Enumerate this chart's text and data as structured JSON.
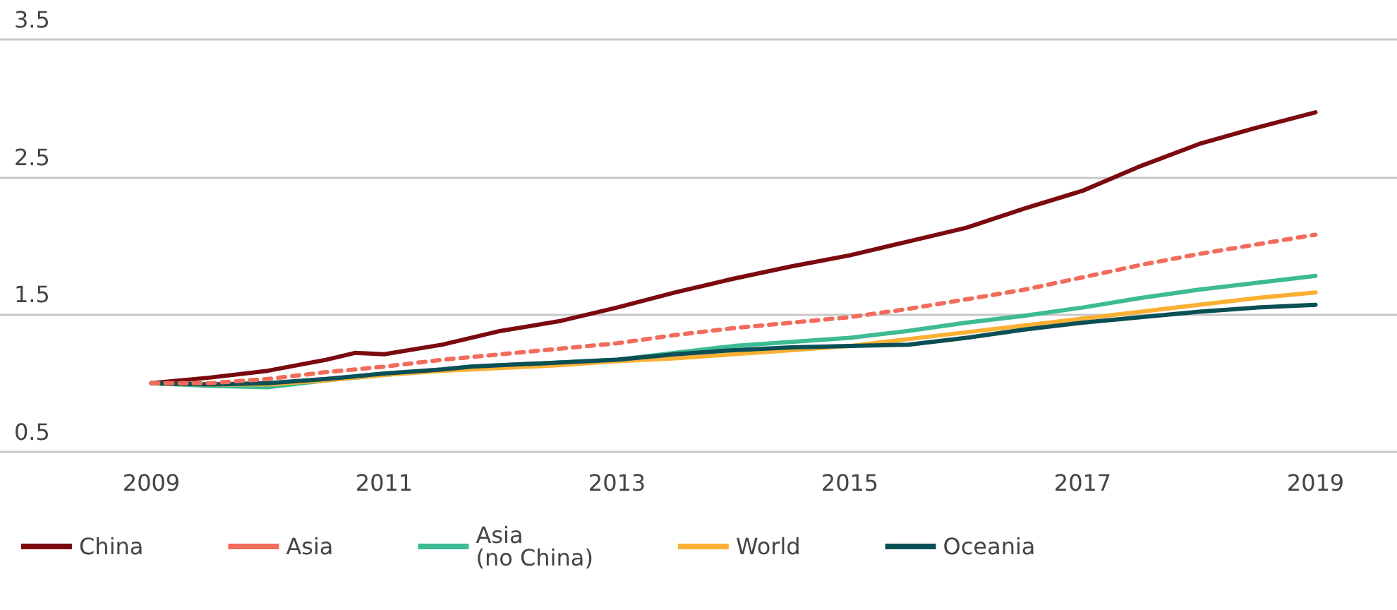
{
  "chart_data": {
    "type": "line",
    "xlim": [
      2007.7,
      2019.7
    ],
    "xticks": [
      2009,
      2011,
      2013,
      2015,
      2017,
      2019
    ],
    "ylim": [
      0.5,
      3.5
    ],
    "yticks": [
      0.5,
      1.5,
      2.5,
      3.5
    ],
    "grid": "y",
    "legend": "bottom left",
    "marker": "none",
    "x": [
      2009,
      2009.5,
      2010,
      2010.5,
      2010.75,
      2011,
      2011.5,
      2011.75,
      2012,
      2012.5,
      2013,
      2013.5,
      2014,
      2014.5,
      2015,
      2015.5,
      2016,
      2016.5,
      2017,
      2017.5,
      2018,
      2018.5,
      2019
    ],
    "series": [
      {
        "name": "China",
        "color": "#7b0a0f",
        "line_style": "solid",
        "values": [
          1.0,
          1.04,
          1.09,
          1.17,
          1.22,
          1.21,
          1.28,
          1.33,
          1.38,
          1.45,
          1.55,
          1.66,
          1.76,
          1.85,
          1.93,
          2.03,
          2.13,
          2.27,
          2.4,
          2.58,
          2.74,
          2.86,
          2.97
        ]
      },
      {
        "name": "Asia",
        "color": "#f26b5b",
        "line_style": "dashed",
        "values": [
          1.0,
          1.0,
          1.03,
          1.08,
          1.1,
          1.12,
          1.17,
          1.19,
          1.21,
          1.25,
          1.29,
          1.35,
          1.4,
          1.44,
          1.48,
          1.54,
          1.61,
          1.68,
          1.77,
          1.86,
          1.94,
          2.01,
          2.08
        ]
      },
      {
        "name": "Asia\n(no China)",
        "color": "#3dbb94",
        "line_style": "solid",
        "values": [
          1.0,
          0.98,
          0.97,
          1.02,
          1.04,
          1.06,
          1.1,
          1.12,
          1.13,
          1.15,
          1.17,
          1.22,
          1.27,
          1.3,
          1.33,
          1.38,
          1.44,
          1.49,
          1.55,
          1.62,
          1.68,
          1.73,
          1.78
        ]
      },
      {
        "name": "World",
        "color": "#fbb034",
        "line_style": "solid",
        "values": [
          1.0,
          0.99,
          0.99,
          1.02,
          1.04,
          1.06,
          1.09,
          1.1,
          1.11,
          1.13,
          1.16,
          1.18,
          1.21,
          1.24,
          1.27,
          1.32,
          1.37,
          1.42,
          1.47,
          1.52,
          1.57,
          1.62,
          1.66
        ]
      },
      {
        "name": "Oceania",
        "color": "#0a4f55",
        "line_style": "solid",
        "values": [
          1.0,
          0.99,
          1.0,
          1.03,
          1.05,
          1.07,
          1.1,
          1.12,
          1.13,
          1.15,
          1.17,
          1.21,
          1.24,
          1.26,
          1.27,
          1.28,
          1.33,
          1.39,
          1.44,
          1.48,
          1.52,
          1.55,
          1.57
        ]
      }
    ]
  }
}
